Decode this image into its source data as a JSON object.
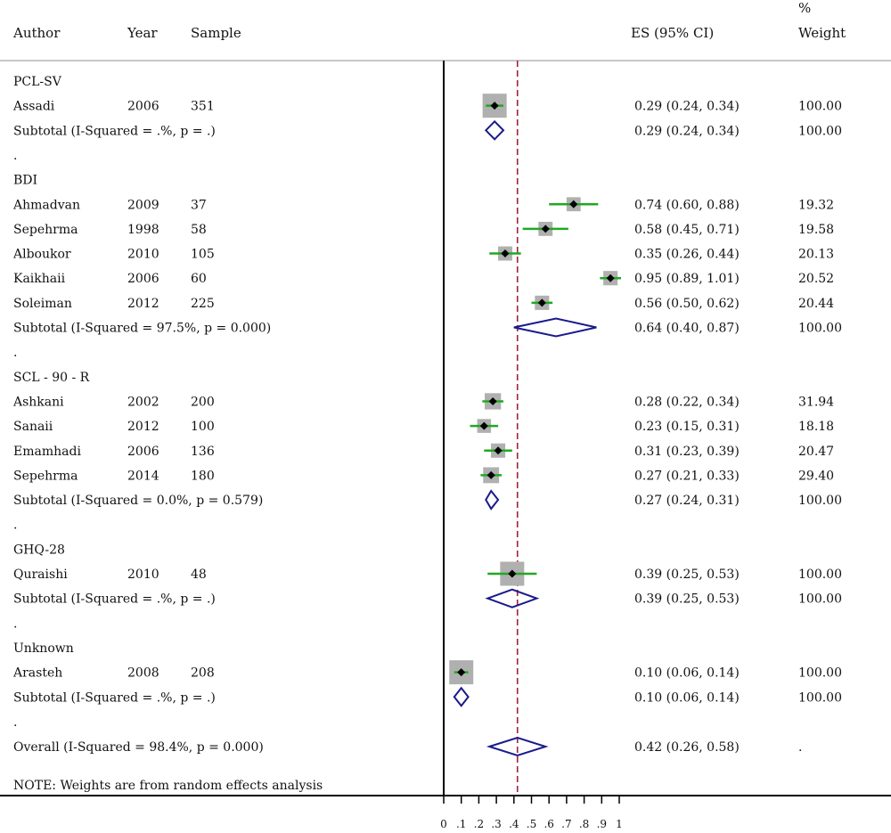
{
  "header": {
    "author": "Author",
    "year": "Year",
    "sample": "Sample",
    "es": "ES (95% CI)",
    "weight_pct": "%",
    "weight": "Weight"
  },
  "note": "NOTE: Weights are from random effects analysis",
  "chart_data": {
    "type": "forest",
    "x_ticks": [
      "0",
      ".1",
      ".2",
      ".3",
      ".4",
      ".5",
      ".6",
      ".7",
      ".8",
      ".9",
      "1"
    ],
    "xlim": [
      0,
      1
    ],
    "overall_line": 0.42,
    "rows": [
      {
        "kind": "group",
        "label": "PCL-SV"
      },
      {
        "kind": "study",
        "author": "Assadi",
        "year": "2006",
        "sample": "351",
        "es": 0.29,
        "lo": 0.24,
        "hi": 0.34,
        "ci": "0.29 (0.24, 0.34)",
        "weight": "100.00",
        "w": 100.0
      },
      {
        "kind": "subtotal",
        "label": "Subtotal  (I-Squared = .%, p = .)",
        "es": 0.29,
        "lo": 0.24,
        "hi": 0.34,
        "ci": "0.29 (0.24, 0.34)",
        "weight": "100.00"
      },
      {
        "kind": "dot",
        "label": "."
      },
      {
        "kind": "group",
        "label": "BDI"
      },
      {
        "kind": "study",
        "author": "Ahmadvan",
        "year": "2009",
        "sample": "37",
        "es": 0.74,
        "lo": 0.6,
        "hi": 0.88,
        "ci": "0.74 (0.60, 0.88)",
        "weight": "19.32",
        "w": 19.32
      },
      {
        "kind": "study",
        "author": "Sepehrma",
        "year": "1998",
        "sample": "58",
        "es": 0.58,
        "lo": 0.45,
        "hi": 0.71,
        "ci": "0.58 (0.45, 0.71)",
        "weight": "19.58",
        "w": 19.58
      },
      {
        "kind": "study",
        "author": "Alboukor",
        "year": "2010",
        "sample": "105",
        "es": 0.35,
        "lo": 0.26,
        "hi": 0.44,
        "ci": "0.35 (0.26, 0.44)",
        "weight": "20.13",
        "w": 20.13
      },
      {
        "kind": "study",
        "author": "Kaikhaii",
        "year": "2006",
        "sample": "60",
        "es": 0.95,
        "lo": 0.89,
        "hi": 1.01,
        "ci": "0.95 (0.89, 1.01)",
        "weight": "20.52",
        "w": 20.52
      },
      {
        "kind": "study",
        "author": "Soleiman",
        "year": "2012",
        "sample": "225",
        "es": 0.56,
        "lo": 0.5,
        "hi": 0.62,
        "ci": "0.56 (0.50, 0.62)",
        "weight": "20.44",
        "w": 20.44
      },
      {
        "kind": "subtotal",
        "label": "Subtotal  (I-Squared = 97.5%, p = 0.000)",
        "es": 0.64,
        "lo": 0.4,
        "hi": 0.87,
        "ci": "0.64 (0.40, 0.87)",
        "weight": "100.00"
      },
      {
        "kind": "dot",
        "label": "."
      },
      {
        "kind": "group",
        "label": "SCL - 90 - R"
      },
      {
        "kind": "study",
        "author": "Ashkani",
        "year": "2002",
        "sample": "200",
        "es": 0.28,
        "lo": 0.22,
        "hi": 0.34,
        "ci": "0.28 (0.22, 0.34)",
        "weight": "31.94",
        "w": 31.94
      },
      {
        "kind": "study",
        "author": "Sanaii",
        "year": "2012",
        "sample": "100",
        "es": 0.23,
        "lo": 0.15,
        "hi": 0.31,
        "ci": "0.23 (0.15, 0.31)",
        "weight": "18.18",
        "w": 18.18
      },
      {
        "kind": "study",
        "author": "Emamhadi",
        "year": "2006",
        "sample": "136",
        "es": 0.31,
        "lo": 0.23,
        "hi": 0.39,
        "ci": "0.31 (0.23, 0.39)",
        "weight": "20.47",
        "w": 20.47
      },
      {
        "kind": "study",
        "author": "Sepehrma",
        "year": "2014",
        "sample": "180",
        "es": 0.27,
        "lo": 0.21,
        "hi": 0.33,
        "ci": "0.27 (0.21, 0.33)",
        "weight": "29.40",
        "w": 29.4
      },
      {
        "kind": "subtotal",
        "label": "Subtotal  (I-Squared = 0.0%, p = 0.579)",
        "es": 0.27,
        "lo": 0.24,
        "hi": 0.31,
        "ci": "0.27 (0.24, 0.31)",
        "weight": "100.00"
      },
      {
        "kind": "dot",
        "label": "."
      },
      {
        "kind": "group",
        "label": "GHQ-28"
      },
      {
        "kind": "study",
        "author": "Quraishi",
        "year": "2010",
        "sample": "48",
        "es": 0.39,
        "lo": 0.25,
        "hi": 0.53,
        "ci": "0.39 (0.25, 0.53)",
        "weight": "100.00",
        "w": 100.0
      },
      {
        "kind": "subtotal",
        "label": "Subtotal  (I-Squared = .%, p = .)",
        "es": 0.39,
        "lo": 0.25,
        "hi": 0.53,
        "ci": "0.39 (0.25, 0.53)",
        "weight": "100.00"
      },
      {
        "kind": "dot",
        "label": "."
      },
      {
        "kind": "group",
        "label": "Unknown"
      },
      {
        "kind": "study",
        "author": "Arasteh",
        "year": "2008",
        "sample": "208",
        "es": 0.1,
        "lo": 0.06,
        "hi": 0.14,
        "ci": "0.10 (0.06, 0.14)",
        "weight": "100.00",
        "w": 100.0
      },
      {
        "kind": "subtotal",
        "label": "Subtotal  (I-Squared = .%, p = .)",
        "es": 0.1,
        "lo": 0.06,
        "hi": 0.14,
        "ci": "0.10 (0.06, 0.14)",
        "weight": "100.00"
      },
      {
        "kind": "dot",
        "label": "."
      },
      {
        "kind": "overall",
        "label": "Overall  (I-Squared = 98.4%, p = 0.000)",
        "es": 0.42,
        "lo": 0.26,
        "hi": 0.58,
        "ci": "0.42 (0.26, 0.58)",
        "weight": "."
      }
    ],
    "colors": {
      "ci_line": "#22a822",
      "weight_box": "#b0b0b0",
      "point": "#000000",
      "diamond": "#1a1a8c",
      "overall_line": "#a0203a",
      "axis": "#000000",
      "header_rule": "#c8c8c8"
    }
  }
}
